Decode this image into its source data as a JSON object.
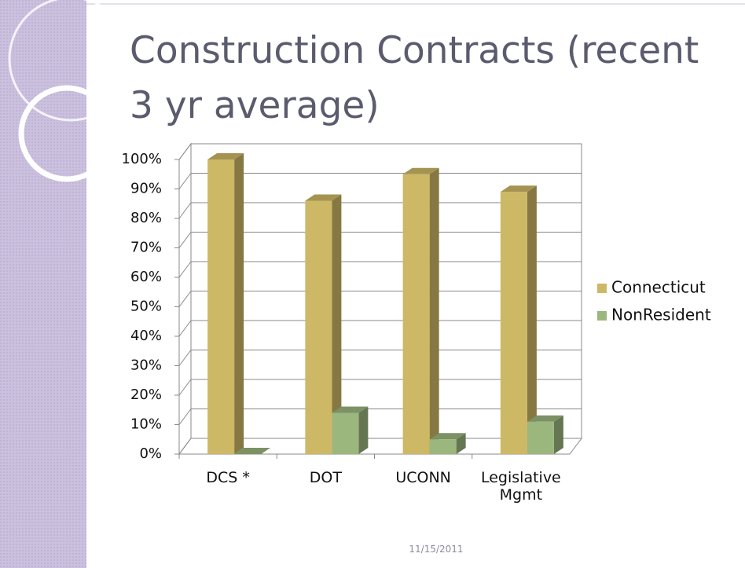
{
  "title": "Construction Contracts (recent 3 yr average)",
  "footer_date": "11/15/2011",
  "chart_data": {
    "type": "bar3d",
    "categories": [
      "DCS *",
      "DOT",
      "UCONN",
      "Legislative Mgmt"
    ],
    "series": [
      {
        "name": "Connecticut",
        "color": "#cdb865",
        "values": [
          100,
          86,
          95,
          89
        ]
      },
      {
        "name": "NonResident",
        "color": "#9bb77e",
        "values": [
          0,
          14,
          5,
          11
        ]
      }
    ],
    "ylim": [
      0,
      100
    ],
    "yticks": [
      {
        "value": 0,
        "label": "0%"
      },
      {
        "value": 10,
        "label": "10%"
      },
      {
        "value": 20,
        "label": "20%"
      },
      {
        "value": 30,
        "label": "30%"
      },
      {
        "value": 40,
        "label": "40%"
      },
      {
        "value": 50,
        "label": "50%"
      },
      {
        "value": 60,
        "label": "60%"
      },
      {
        "value": 70,
        "label": "70%"
      },
      {
        "value": 80,
        "label": "80%"
      },
      {
        "value": 90,
        "label": "90%"
      },
      {
        "value": 100,
        "label": "100%"
      }
    ],
    "grid": true,
    "legend": "right"
  }
}
